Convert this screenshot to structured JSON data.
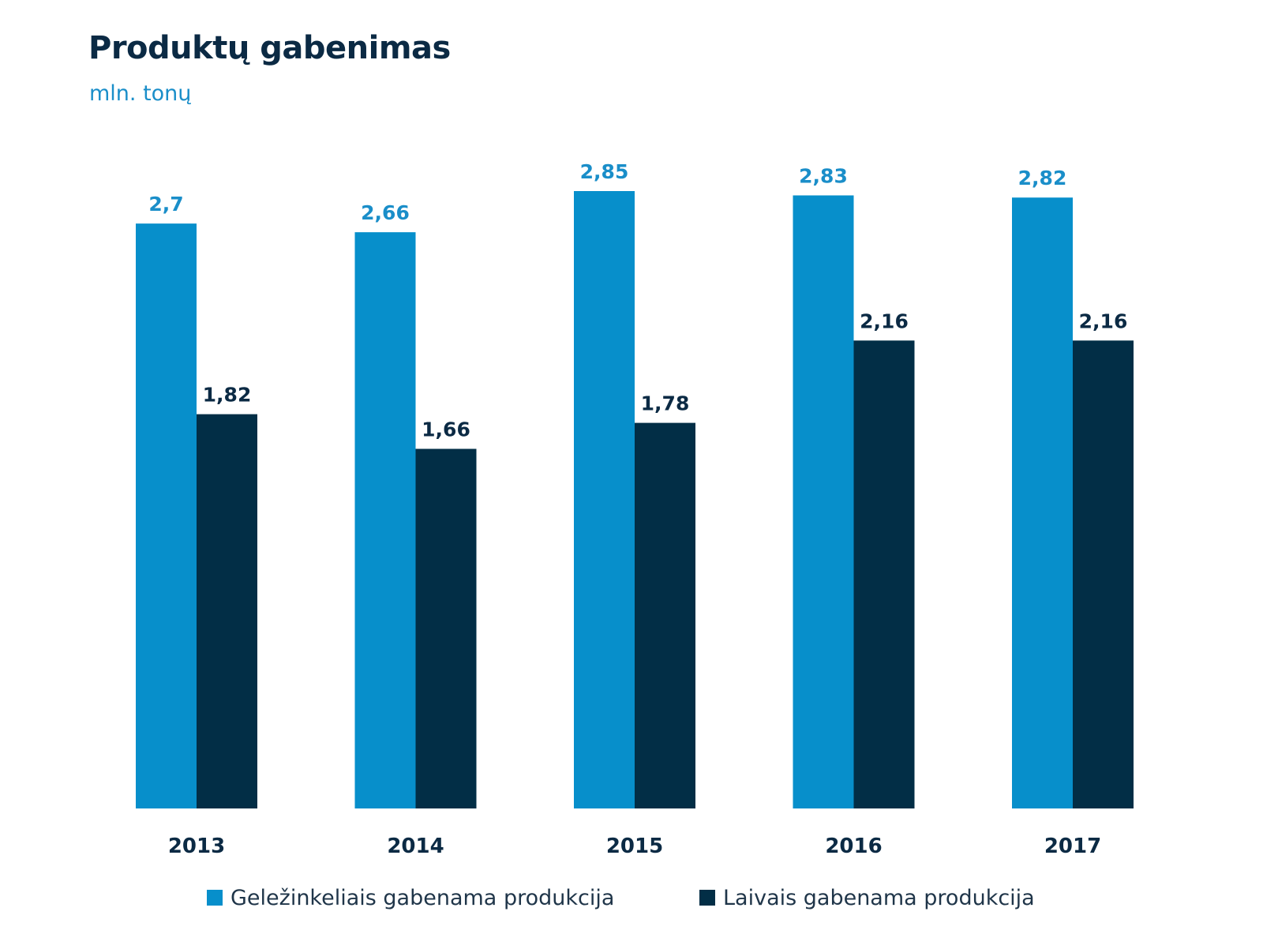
{
  "title": "Produktų gabenimas",
  "subtitle": "mln. tonų",
  "colors": {
    "rail": "#078fcb",
    "ship": "#022e46",
    "rail_label": "#1a8ec9",
    "ship_label": "#0b2a44",
    "year_label": "#0b2a44"
  },
  "chart_data": {
    "type": "bar",
    "title": "Produktų gabenimas",
    "subtitle": "mln. tonų",
    "categories": [
      "2013",
      "2014",
      "2015",
      "2016",
      "2017"
    ],
    "series": [
      {
        "name": "Geležinkeliais gabenama produkcija",
        "values": [
          2.7,
          2.66,
          2.85,
          2.83,
          2.82
        ],
        "labels": [
          "2,7",
          "2,66",
          "2,85",
          "2,83",
          "2,82"
        ]
      },
      {
        "name": "Laivais gabenama produkcija",
        "values": [
          1.82,
          1.66,
          1.78,
          2.16,
          2.16
        ],
        "labels": [
          "1,82",
          "1,66",
          "1,78",
          "2,16",
          "2,16"
        ]
      }
    ],
    "ylim": [
      0,
      2.85
    ],
    "grid": false,
    "legend_position": "bottom"
  }
}
